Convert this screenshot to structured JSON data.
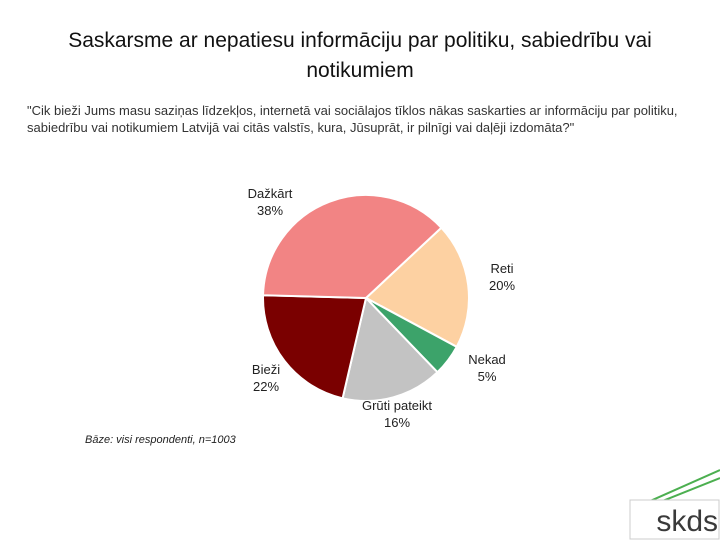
{
  "chart_data": {
    "type": "pie",
    "title": "Saskarsme ar nepatiesu informāciju par politiku, sabiedrību vai notikumiem",
    "subtitle": "\"Cik bieži Jums masu saziņas līdzekļos, internetā vai sociālajos tīklos nākas saskarties ar informāciju par politiku, sabiedrību vai notikumiem Latvijā vai citās valstīs, kura, Jūsuprāt, ir pilnīgi vai daļēji izdomāta?\"",
    "note": "Bāze: visi respondenti, n=1003",
    "categories": [
      "Reti",
      "Nekad",
      "Grūti pateikt",
      "Bieži",
      "Dažkārt"
    ],
    "values": [
      20,
      5,
      16,
      22,
      38
    ],
    "value_labels": [
      "20%",
      "5%",
      "16%",
      "22%",
      "38%"
    ],
    "colors": [
      "#fdd1a2",
      "#3ca36a",
      "#c3c3c3",
      "#7a0000",
      "#f28484"
    ]
  },
  "logo": "skds"
}
